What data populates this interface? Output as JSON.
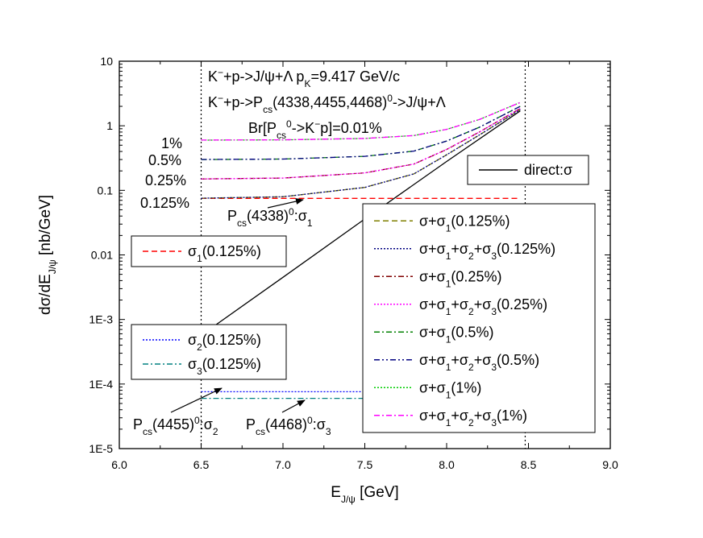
{
  "chart_data": {
    "type": "line",
    "y_scale": "log",
    "xlim": [
      6.0,
      9.0
    ],
    "ylim": [
      1e-05,
      10
    ],
    "x_ticks": [
      "6.0",
      "6.5",
      "7.0",
      "7.5",
      "8.0",
      "8.5",
      "9.0"
    ],
    "y_ticks": [
      "1E-5",
      "1E-4",
      "1E-3",
      "0.01",
      "0.1",
      "1",
      "10"
    ],
    "xlabel": "E_{J/ψ} [GeV]",
    "ylabel": "dσ/dE_{J/ψ} [nb/GeV]",
    "vertical_lines": [
      6.5,
      8.48
    ],
    "annotations": {
      "reaction_1": "K⁻+p->J/ψ+Λ   p_K=9.417 GeV/c",
      "reaction_2": "K⁻+p->P_cs(4338,4455,4468)⁰->J/ψ+Λ",
      "branching": "Br[P_cs⁰->K⁻p]=0.01%",
      "pct_1": "1%",
      "pct_05": "0.5%",
      "pct_025": "0.25%",
      "pct_0125": "0.125%",
      "arrow_4338": "P_cs(4338)⁰:σ₁",
      "arrow_4455": "P_cs(4455)⁰:σ₂",
      "arrow_4468": "P_cs(4468)⁰:σ₃"
    },
    "legends": {
      "direct": [
        {
          "label": "direct:σ",
          "color": "#000000",
          "dash": "solid"
        }
      ],
      "sigma1": [
        {
          "label": "σ₁(0.125%)",
          "color": "#ff0000",
          "dash": "dash"
        }
      ],
      "sigma23": [
        {
          "label": "σ₂(0.125%)",
          "color": "#0000ff",
          "dash": "dot"
        },
        {
          "label": "σ₃(0.125%)",
          "color": "#008080",
          "dash": "dashdot"
        }
      ],
      "totals": [
        {
          "label": "σ+σ₁(0.125%)",
          "color": "#808000",
          "dash": "dash"
        },
        {
          "label": "σ+σ₁+σ₂+σ₃(0.125%)",
          "color": "#000080",
          "dash": "dot"
        },
        {
          "label": "σ+σ₁(0.25%)",
          "color": "#800000",
          "dash": "dashdot"
        },
        {
          "label": "σ+σ₁+σ₂+σ₃(0.25%)",
          "color": "#ff00ff",
          "dash": "dot"
        },
        {
          "label": "σ+σ₁(0.5%)",
          "color": "#008000",
          "dash": "dashdot"
        },
        {
          "label": "σ+σ₁+σ₂+σ₃(0.5%)",
          "color": "#000080",
          "dash": "dashdotdot"
        },
        {
          "label": "σ+σ₁(1%)",
          "color": "#00cc00",
          "dash": "dot"
        },
        {
          "label": "σ+σ₁+σ₂+σ₃(1%)",
          "color": "#ff00ff",
          "dash": "dashdot"
        }
      ]
    },
    "series": [
      {
        "name": "direct:σ",
        "color": "#000000",
        "dash": "solid",
        "x": [
          6.55,
          7.0,
          7.5,
          8.0,
          8.45
        ],
        "y": [
          0.0007,
          0.0045,
          0.036,
          0.28,
          1.7
        ]
      },
      {
        "name": "σ₁(0.125%)",
        "color": "#ff0000",
        "dash": "dash",
        "x": [
          6.5,
          8.45
        ],
        "y": [
          0.075,
          0.075
        ]
      },
      {
        "name": "σ₂(0.125%)",
        "color": "#0000ff",
        "dash": "dot",
        "x": [
          6.5,
          8.45
        ],
        "y": [
          7.6e-05,
          7.6e-05
        ]
      },
      {
        "name": "σ₃(0.125%)",
        "color": "#008080",
        "dash": "dashdot",
        "x": [
          6.5,
          8.45
        ],
        "y": [
          6e-05,
          6e-05
        ]
      },
      {
        "name": "σ+σ₁(0.125%)",
        "color": "#808000",
        "dash": "dash",
        "x": [
          6.5,
          7.0,
          7.5,
          7.8,
          8.0,
          8.2,
          8.45
        ],
        "y": [
          0.0755,
          0.0795,
          0.111,
          0.18,
          0.355,
          0.72,
          1.78
        ]
      },
      {
        "name": "σ+σ₁+σ₂+σ₃(0.125%)",
        "color": "#000080",
        "dash": "dot",
        "x": [
          6.5,
          7.0,
          7.5,
          7.8,
          8.0,
          8.2,
          8.45
        ],
        "y": [
          0.0756,
          0.0796,
          0.111,
          0.18,
          0.355,
          0.72,
          1.78
        ]
      },
      {
        "name": "σ+σ₁(0.25%)",
        "color": "#800000",
        "dash": "dashdot",
        "x": [
          6.5,
          7.0,
          7.5,
          7.8,
          8.0,
          8.2,
          8.45
        ],
        "y": [
          0.15,
          0.155,
          0.186,
          0.255,
          0.43,
          0.8,
          1.85
        ]
      },
      {
        "name": "σ+σ₁+σ₂+σ₃(0.25%)",
        "color": "#ff00ff",
        "dash": "dot",
        "x": [
          6.5,
          7.0,
          7.5,
          7.8,
          8.0,
          8.2,
          8.45
        ],
        "y": [
          0.1502,
          0.1552,
          0.1862,
          0.2552,
          0.4302,
          0.8,
          1.85
        ]
      },
      {
        "name": "σ+σ₁(0.5%)",
        "color": "#008000",
        "dash": "dashdot",
        "x": [
          6.5,
          7.0,
          7.5,
          7.8,
          8.0,
          8.2,
          8.45
        ],
        "y": [
          0.3,
          0.305,
          0.336,
          0.405,
          0.58,
          0.95,
          2.0
        ]
      },
      {
        "name": "σ+σ₁+σ₂+σ₃(0.5%)",
        "color": "#000080",
        "dash": "dashdotdot",
        "x": [
          6.5,
          7.0,
          7.5,
          7.8,
          8.0,
          8.2,
          8.45
        ],
        "y": [
          0.3003,
          0.3053,
          0.3363,
          0.4053,
          0.5803,
          0.95,
          2.0
        ]
      },
      {
        "name": "σ+σ₁(1%)",
        "color": "#00cc00",
        "dash": "dot",
        "x": [
          6.5,
          7.0,
          7.5,
          7.8,
          8.0,
          8.2,
          8.45
        ],
        "y": [
          0.6,
          0.605,
          0.636,
          0.705,
          0.88,
          1.25,
          2.3
        ]
      },
      {
        "name": "σ+σ₁+σ₂+σ₃(1%)",
        "color": "#ff00ff",
        "dash": "dashdot",
        "x": [
          6.5,
          7.0,
          7.5,
          7.8,
          8.0,
          8.2,
          8.45
        ],
        "y": [
          0.6006,
          0.6056,
          0.6366,
          0.7056,
          0.8806,
          1.25,
          2.3
        ]
      }
    ]
  }
}
